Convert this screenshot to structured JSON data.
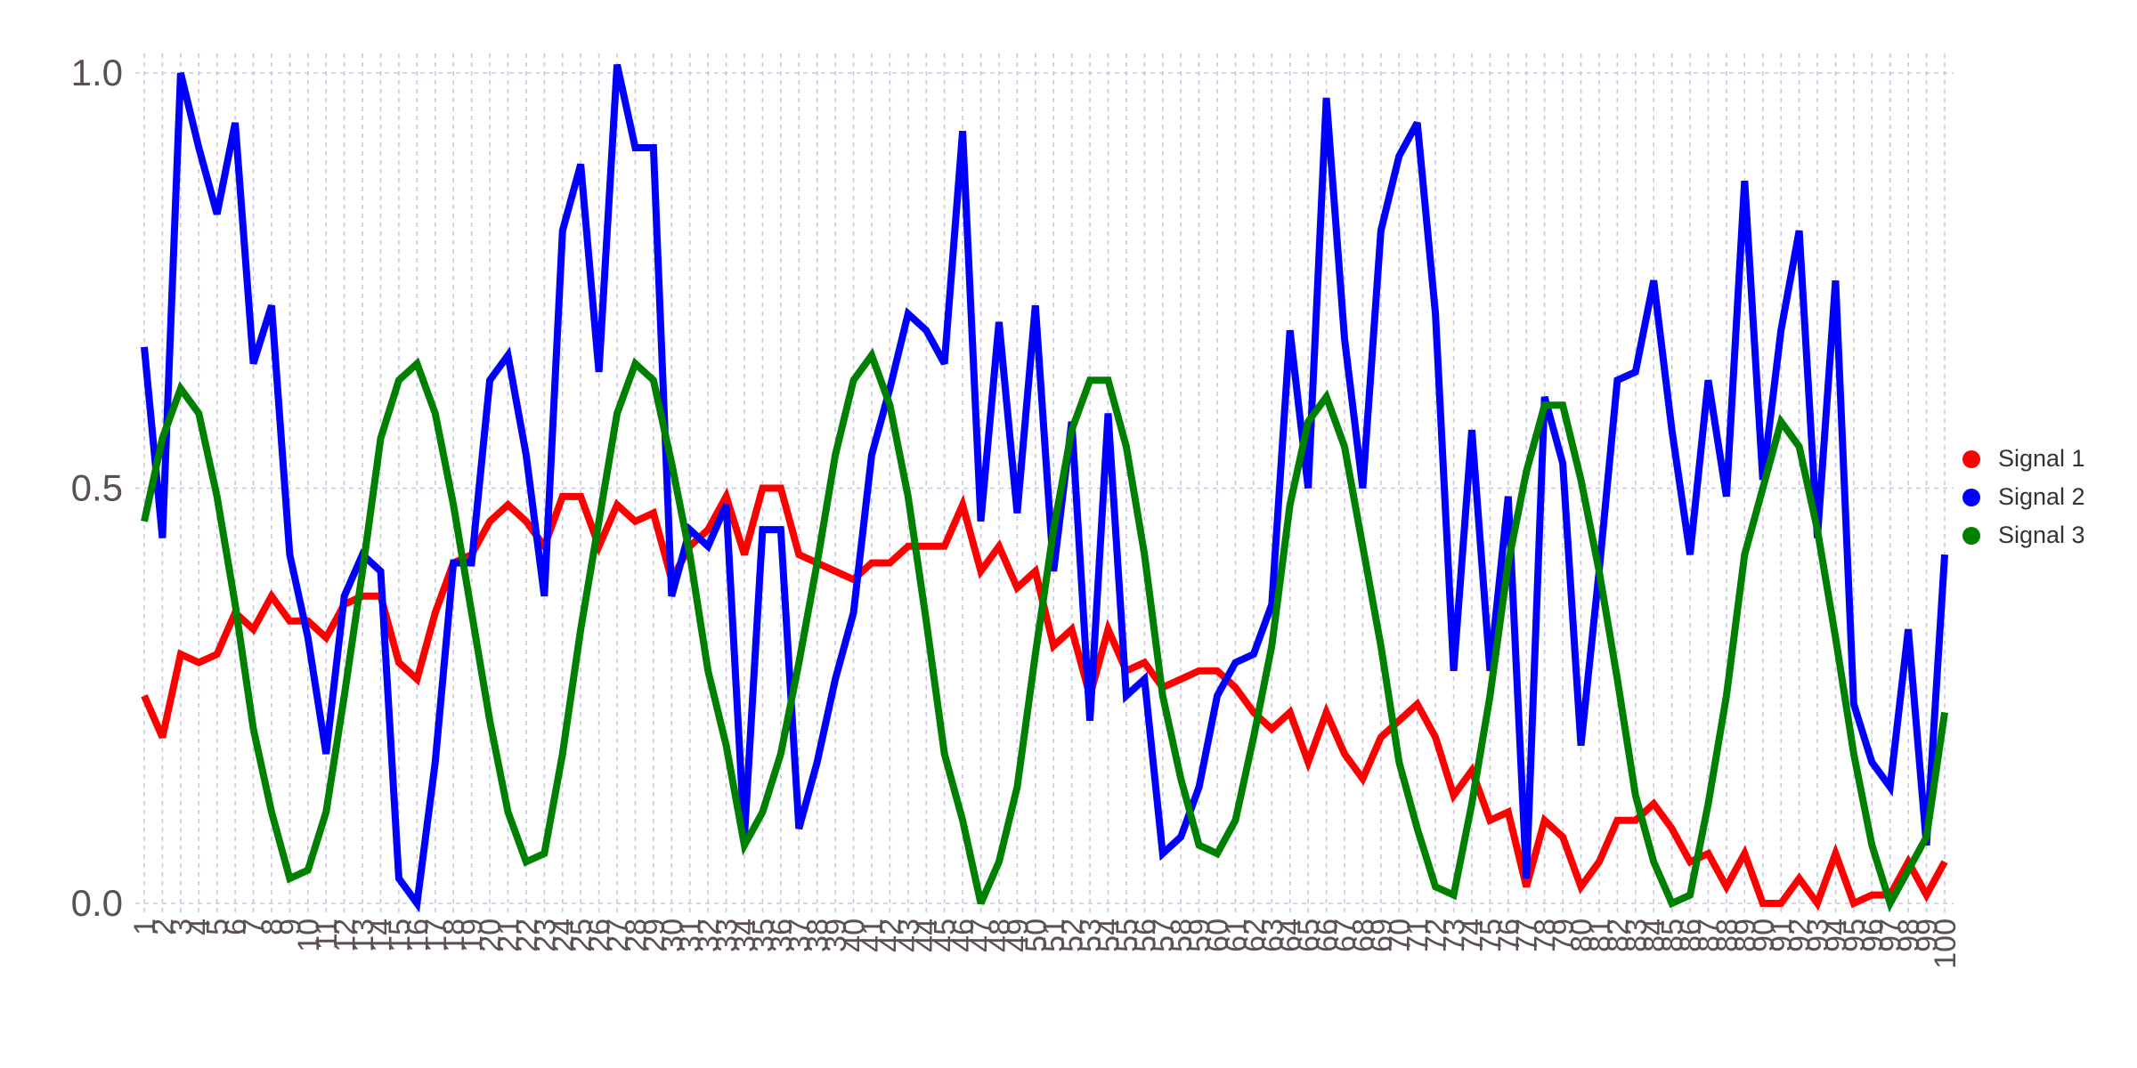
{
  "chart_data": {
    "type": "line",
    "x": [
      1,
      2,
      3,
      4,
      5,
      6,
      7,
      8,
      9,
      10,
      11,
      12,
      13,
      14,
      15,
      16,
      17,
      18,
      19,
      20,
      21,
      22,
      23,
      24,
      25,
      26,
      27,
      28,
      29,
      30,
      31,
      32,
      33,
      34,
      35,
      36,
      37,
      38,
      39,
      40,
      41,
      42,
      43,
      44,
      45,
      46,
      47,
      48,
      49,
      50,
      51,
      52,
      53,
      54,
      55,
      56,
      57,
      58,
      59,
      60,
      61,
      62,
      63,
      64,
      65,
      66,
      67,
      68,
      69,
      70,
      71,
      72,
      73,
      74,
      75,
      76,
      77,
      78,
      79,
      80,
      81,
      82,
      83,
      84,
      85,
      86,
      87,
      88,
      89,
      90,
      91,
      92,
      93,
      94,
      95,
      96,
      97,
      98,
      99,
      100
    ],
    "ylim": [
      0,
      1
    ],
    "yticks": [
      0.0,
      0.5,
      1.0
    ],
    "ytick_labels": [
      "0.0",
      "0.5",
      "1.0"
    ],
    "xtick_labels": [
      "1",
      "2",
      "3",
      "4",
      "5",
      "6",
      "7",
      "8",
      "9",
      "10",
      "11",
      "12",
      "13",
      "14",
      "15",
      "16",
      "17",
      "18",
      "19",
      "20",
      "21",
      "22",
      "23",
      "24",
      "25",
      "26",
      "27",
      "28",
      "29",
      "30",
      "31",
      "32",
      "33",
      "34",
      "35",
      "36",
      "37",
      "38",
      "39",
      "40",
      "41",
      "42",
      "43",
      "44",
      "45",
      "46",
      "47",
      "48",
      "49",
      "50",
      "51",
      "52",
      "53",
      "54",
      "55",
      "56",
      "57",
      "58",
      "59",
      "60",
      "61",
      "62",
      "63",
      "64",
      "65",
      "66",
      "67",
      "68",
      "69",
      "70",
      "71",
      "72",
      "73",
      "74",
      "75",
      "76",
      "77",
      "78",
      "79",
      "80",
      "81",
      "82",
      "83",
      "84",
      "85",
      "86",
      "87",
      "88",
      "89",
      "90",
      "91",
      "92",
      "93",
      "94",
      "95",
      "96",
      "97",
      "98",
      "99",
      "100"
    ],
    "grid": true,
    "legend_position": "right",
    "series": [
      {
        "name": "Signal 1",
        "color": "#ff0000",
        "values": [
          0.25,
          0.2,
          0.3,
          0.29,
          0.3,
          0.35,
          0.33,
          0.37,
          0.34,
          0.34,
          0.32,
          0.36,
          0.37,
          0.37,
          0.29,
          0.27,
          0.35,
          0.41,
          0.42,
          0.46,
          0.48,
          0.46,
          0.43,
          0.49,
          0.49,
          0.43,
          0.48,
          0.46,
          0.47,
          0.39,
          0.43,
          0.45,
          0.49,
          0.42,
          0.5,
          0.5,
          0.42,
          0.41,
          0.4,
          0.39,
          0.41,
          0.41,
          0.43,
          0.43,
          0.43,
          0.48,
          0.4,
          0.43,
          0.38,
          0.4,
          0.31,
          0.33,
          0.25,
          0.33,
          0.28,
          0.29,
          0.26,
          0.27,
          0.28,
          0.28,
          0.26,
          0.23,
          0.21,
          0.23,
          0.17,
          0.23,
          0.18,
          0.15,
          0.2,
          0.22,
          0.24,
          0.2,
          0.13,
          0.16,
          0.1,
          0.11,
          0.02,
          0.1,
          0.08,
          0.02,
          0.05,
          0.1,
          0.1,
          0.12,
          0.09,
          0.05,
          0.06,
          0.02,
          0.06,
          0.0,
          0.0,
          0.03,
          0.0,
          0.06,
          0.0,
          0.01,
          0.01,
          0.05,
          0.01,
          0.05
        ]
      },
      {
        "name": "Signal 2",
        "color": "#0000ff",
        "values": [
          0.67,
          0.44,
          1.0,
          0.91,
          0.83,
          0.94,
          0.65,
          0.72,
          0.42,
          0.32,
          0.18,
          0.37,
          0.42,
          0.4,
          0.03,
          0.0,
          0.17,
          0.41,
          0.41,
          0.63,
          0.66,
          0.54,
          0.37,
          0.81,
          0.89,
          0.64,
          1.01,
          0.91,
          0.91,
          0.37,
          0.45,
          0.43,
          0.48,
          0.08,
          0.45,
          0.45,
          0.09,
          0.17,
          0.27,
          0.35,
          0.54,
          0.62,
          0.71,
          0.69,
          0.65,
          0.93,
          0.46,
          0.7,
          0.47,
          0.72,
          0.4,
          0.58,
          0.22,
          0.59,
          0.25,
          0.27,
          0.06,
          0.08,
          0.14,
          0.25,
          0.29,
          0.3,
          0.36,
          0.69,
          0.5,
          0.97,
          0.68,
          0.5,
          0.81,
          0.9,
          0.94,
          0.71,
          0.28,
          0.57,
          0.28,
          0.49,
          0.03,
          0.61,
          0.53,
          0.19,
          0.4,
          0.63,
          0.64,
          0.75,
          0.57,
          0.42,
          0.63,
          0.49,
          0.87,
          0.51,
          0.69,
          0.81,
          0.44,
          0.75,
          0.24,
          0.17,
          0.14,
          0.33,
          0.07,
          0.42
        ]
      },
      {
        "name": "Signal 3",
        "color": "#008000",
        "values": [
          0.46,
          0.56,
          0.62,
          0.59,
          0.49,
          0.36,
          0.21,
          0.11,
          0.03,
          0.04,
          0.11,
          0.25,
          0.4,
          0.56,
          0.63,
          0.65,
          0.59,
          0.48,
          0.35,
          0.22,
          0.11,
          0.05,
          0.06,
          0.18,
          0.33,
          0.46,
          0.59,
          0.65,
          0.63,
          0.53,
          0.42,
          0.28,
          0.19,
          0.07,
          0.11,
          0.18,
          0.29,
          0.41,
          0.54,
          0.63,
          0.66,
          0.6,
          0.49,
          0.34,
          0.18,
          0.1,
          0.0,
          0.05,
          0.14,
          0.3,
          0.45,
          0.57,
          0.63,
          0.63,
          0.55,
          0.42,
          0.25,
          0.15,
          0.07,
          0.06,
          0.1,
          0.2,
          0.31,
          0.48,
          0.58,
          0.61,
          0.55,
          0.43,
          0.31,
          0.17,
          0.09,
          0.02,
          0.01,
          0.12,
          0.25,
          0.41,
          0.52,
          0.6,
          0.6,
          0.51,
          0.4,
          0.27,
          0.13,
          0.05,
          0.0,
          0.01,
          0.12,
          0.25,
          0.42,
          0.5,
          0.58,
          0.55,
          0.45,
          0.32,
          0.18,
          0.07,
          0.0,
          0.04,
          0.08,
          0.23
        ]
      }
    ]
  }
}
